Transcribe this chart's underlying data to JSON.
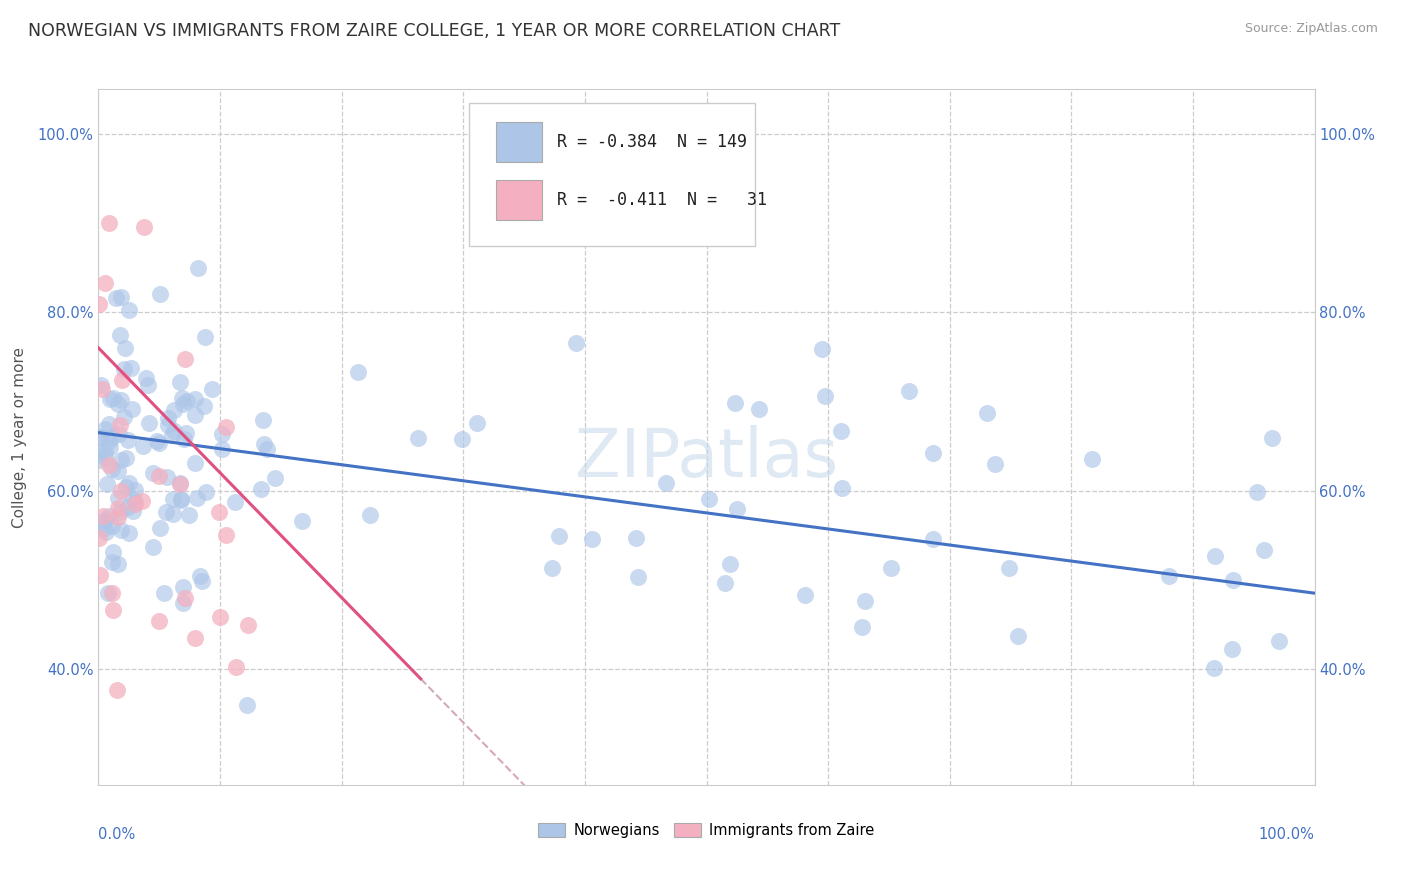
{
  "title": "NORWEGIAN VS IMMIGRANTS FROM ZAIRE COLLEGE, 1 YEAR OR MORE CORRELATION CHART",
  "source": "Source: ZipAtlas.com",
  "ylabel": "College, 1 year or more",
  "xlim": [
    0.0,
    1.0
  ],
  "ylim": [
    0.27,
    1.05
  ],
  "legend_r1": "-0.384",
  "legend_n1": "149",
  "legend_r2": "-0.411",
  "legend_n2": " 31",
  "watermark": "ZIPatlas",
  "blue_line_color": "#4472c4",
  "pink_line_color": "#e05080",
  "scatter_blue_color": "#adc6e8",
  "scatter_pink_color": "#f4b0c0",
  "background_color": "#ffffff",
  "grid_color": "#cccccc",
  "title_fontsize": 12.5,
  "axis_fontsize": 11,
  "tick_fontsize": 10.5,
  "legend_fontsize": 12,
  "blue_text_color": "#4472c4",
  "axis_text_color": "#555555"
}
